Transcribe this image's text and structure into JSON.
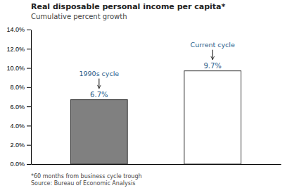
{
  "chart_data": {
    "type": "bar",
    "title": "Real disposable personal income per capita*",
    "subtitle": "Cumulative percent growth",
    "footnote": "*60 months from business cycle trough\nSource: Bureau of Economic Analysis",
    "categories": [
      "1990s cycle",
      "Current cycle"
    ],
    "values": [
      0.067,
      0.097
    ],
    "value_labels": [
      "6.7%",
      "9.7%"
    ],
    "data_labels": true,
    "colors": [
      "#808080",
      "#ffffff"
    ],
    "ylim": [
      0,
      0.14
    ],
    "yticks": [
      {
        "value": 0.0,
        "label": "0.0%"
      },
      {
        "value": 0.02,
        "label": "2.0%"
      },
      {
        "value": 0.04,
        "label": "4.0%"
      },
      {
        "value": 0.06,
        "label": "6.0%"
      },
      {
        "value": 0.08,
        "label": "8.0%"
      },
      {
        "value": 0.1,
        "label": "10.0%"
      },
      {
        "value": 0.12,
        "label": "12.0%"
      },
      {
        "value": 0.14,
        "label": "14.0%"
      }
    ],
    "grid": false,
    "tick_labels": "y"
  }
}
